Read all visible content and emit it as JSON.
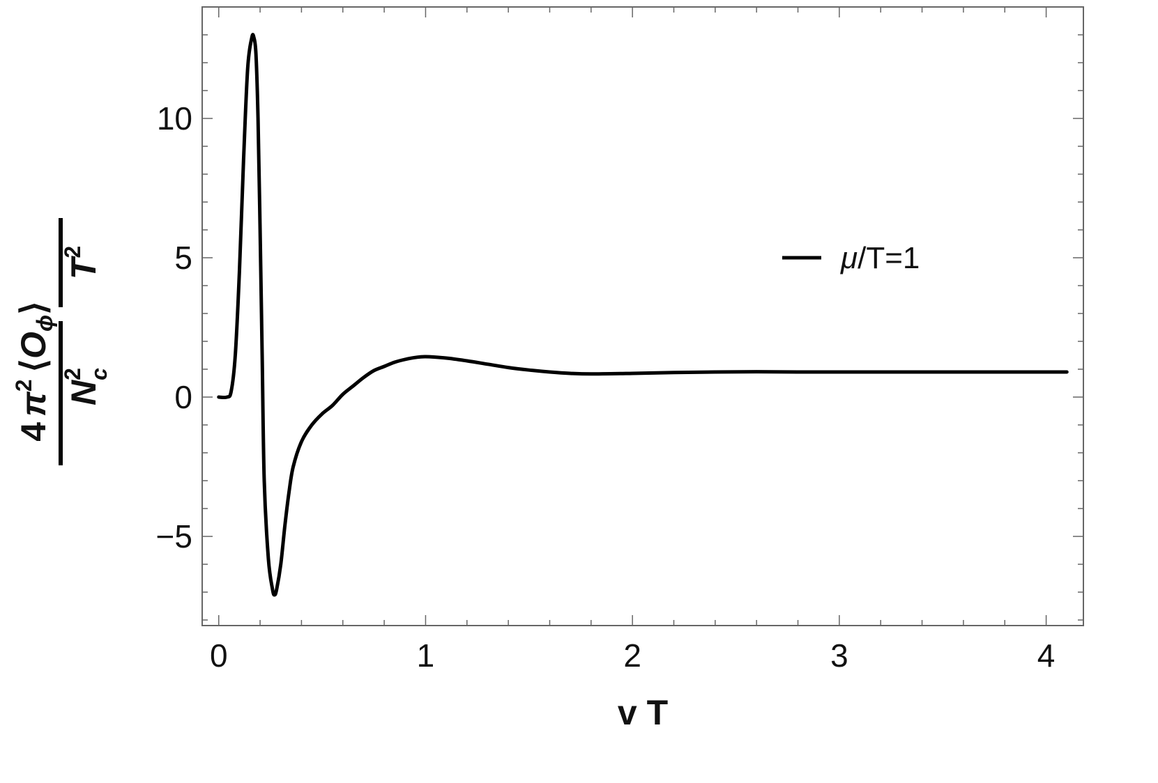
{
  "chart_data": {
    "type": "line",
    "xlabel": "v T",
    "ylabel": {
      "coefficient": "4",
      "pi": "π",
      "pi_exp": "2",
      "operator_open": "⟨",
      "operator": "O",
      "operator_sub": "ϕ",
      "operator_close": "⟩",
      "nc": "N",
      "nc_sub": "c",
      "nc_exp": "2",
      "t": "T",
      "t_exp": "2"
    },
    "xlim": [
      -0.08,
      4.18
    ],
    "ylim": [
      -8.2,
      14.0
    ],
    "x_ticks": [
      {
        "value": 0,
        "label": "0"
      },
      {
        "value": 1,
        "label": "1"
      },
      {
        "value": 2,
        "label": "2"
      },
      {
        "value": 3,
        "label": "3"
      },
      {
        "value": 4,
        "label": "4"
      }
    ],
    "y_ticks": [
      {
        "value": -5,
        "label": "−5"
      },
      {
        "value": 0,
        "label": "0"
      },
      {
        "value": 5,
        "label": "5"
      },
      {
        "value": 10,
        "label": "10"
      }
    ],
    "x_minor_step": 0.2,
    "y_minor_step": 1,
    "grid": false,
    "legend": {
      "position": "right-middle",
      "mu": "μ",
      "rest": "/T=1"
    },
    "series": [
      {
        "name": "μ/T=1",
        "color": "#000000",
        "points": [
          [
            0.0,
            0.0
          ],
          [
            0.04,
            0.0
          ],
          [
            0.06,
            0.2
          ],
          [
            0.08,
            1.5
          ],
          [
            0.1,
            4.5
          ],
          [
            0.12,
            8.5
          ],
          [
            0.14,
            11.8
          ],
          [
            0.16,
            12.9
          ],
          [
            0.17,
            12.9
          ],
          [
            0.18,
            12.3
          ],
          [
            0.19,
            10.0
          ],
          [
            0.2,
            6.0
          ],
          [
            0.21,
            1.5
          ],
          [
            0.22,
            -3.0
          ],
          [
            0.24,
            -5.8
          ],
          [
            0.26,
            -6.9
          ],
          [
            0.27,
            -7.1
          ],
          [
            0.28,
            -6.9
          ],
          [
            0.3,
            -6.0
          ],
          [
            0.32,
            -4.6
          ],
          [
            0.34,
            -3.4
          ],
          [
            0.36,
            -2.5
          ],
          [
            0.4,
            -1.6
          ],
          [
            0.45,
            -1.0
          ],
          [
            0.5,
            -0.6
          ],
          [
            0.55,
            -0.3
          ],
          [
            0.6,
            0.1
          ],
          [
            0.65,
            0.4
          ],
          [
            0.7,
            0.7
          ],
          [
            0.75,
            0.95
          ],
          [
            0.8,
            1.1
          ],
          [
            0.85,
            1.25
          ],
          [
            0.9,
            1.35
          ],
          [
            0.95,
            1.42
          ],
          [
            1.0,
            1.45
          ],
          [
            1.1,
            1.4
          ],
          [
            1.2,
            1.3
          ],
          [
            1.3,
            1.18
          ],
          [
            1.4,
            1.06
          ],
          [
            1.5,
            0.97
          ],
          [
            1.6,
            0.9
          ],
          [
            1.7,
            0.85
          ],
          [
            1.8,
            0.83
          ],
          [
            2.0,
            0.85
          ],
          [
            2.2,
            0.88
          ],
          [
            2.4,
            0.9
          ],
          [
            2.6,
            0.91
          ],
          [
            2.8,
            0.9
          ],
          [
            3.0,
            0.9
          ],
          [
            3.5,
            0.9
          ],
          [
            4.0,
            0.9
          ],
          [
            4.1,
            0.9
          ]
        ]
      }
    ]
  }
}
